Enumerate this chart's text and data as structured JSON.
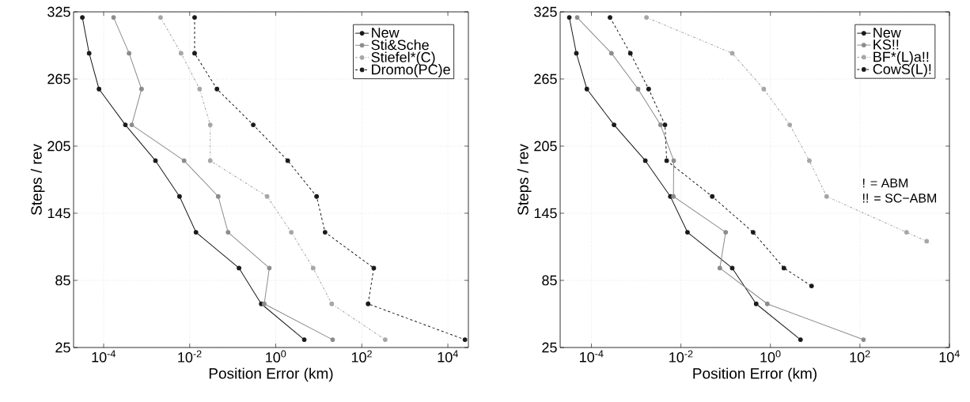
{
  "chart_data": [
    {
      "type": "line",
      "xlabel": "Position Error  (km)",
      "ylabel": "Steps / rev",
      "log": "x",
      "grid": true,
      "legend": "top right",
      "marker": "circle",
      "xlim": [
        2e-05,
        30000.0
      ],
      "ylim": [
        25,
        325
      ],
      "yticks": [
        25,
        85,
        145,
        205,
        265,
        325
      ],
      "xticks": [
        {
          "value": 0.0001,
          "label": "10$^{-4}$"
        },
        {
          "value": 0.01,
          "label": "10$^{-2}$"
        },
        {
          "value": 1,
          "label": "10$^{0}$"
        },
        {
          "value": 100,
          "label": "10$^{2}$"
        },
        {
          "value": 10000,
          "label": "10$^{4}$"
        }
      ],
      "series": [
        {
          "name": "New",
          "color": "#1a1a1a",
          "line_style": "solid",
          "x": [
            3.2e-05,
            4.6e-05,
            7.8e-05,
            0.00032,
            0.0016,
            0.0058,
            0.014,
            0.14,
            0.46,
            4.6
          ],
          "values": [
            320,
            288,
            256,
            224,
            192,
            160,
            128,
            96,
            64,
            32
          ]
        },
        {
          "name": "Sti&Sche",
          "color": "#8c8c8c",
          "line_style": "solid",
          "x": [
            0.00017,
            0.00039,
            0.00076,
            0.00045,
            0.0074,
            0.046,
            0.078,
            0.71,
            0.54,
            21
          ],
          "values": [
            320,
            288,
            256,
            224,
            192,
            160,
            128,
            96,
            64,
            32
          ]
        },
        {
          "name": "Stiefel*(C)",
          "color": "#a6a6a6",
          "line_style": "dashdot",
          "x": [
            0.0021,
            0.0063,
            0.017,
            0.03,
            0.03,
            0.63,
            2.3,
            7.4,
            20,
            350
          ],
          "values": [
            320,
            288,
            256,
            224,
            192,
            160,
            128,
            96,
            64,
            32
          ]
        },
        {
          "name": "Dromo(PC)e",
          "color": "#1a1a1a",
          "line_style": "dashed",
          "x": [
            0.013,
            0.013,
            0.043,
            0.3,
            1.9,
            8.9,
            14,
            190,
            140,
            25000
          ],
          "values": [
            320,
            288,
            256,
            224,
            192,
            160,
            128,
            96,
            64,
            32
          ]
        }
      ]
    },
    {
      "type": "line",
      "xlabel": "Position Error  (km)",
      "ylabel": "Steps / rev",
      "log": "x",
      "grid": true,
      "legend": "top right",
      "marker": "circle",
      "xlim": [
        2e-05,
        10000
      ],
      "ylim": [
        25,
        325
      ],
      "yticks": [
        25,
        85,
        145,
        205,
        265,
        325
      ],
      "xticks": [
        {
          "value": 0.0001,
          "label": "10$^{-4}$"
        },
        {
          "value": 0.01,
          "label": "10$^{-2}$"
        },
        {
          "value": 1,
          "label": "10$^{0}$"
        },
        {
          "value": 100,
          "label": "10$^{2}$"
        },
        {
          "value": 10000,
          "label": "10$^{4}$"
        }
      ],
      "annotations": [
        "! = ABM",
        "!! = SC−ABM"
      ],
      "series": [
        {
          "name": "New",
          "color": "#1a1a1a",
          "line_style": "solid",
          "x": [
            3.2e-05,
            4.6e-05,
            7.9e-05,
            0.00032,
            0.0016,
            0.0058,
            0.014,
            0.14,
            0.48,
            4.7
          ],
          "values": [
            320,
            288,
            256,
            224,
            192,
            160,
            128,
            96,
            64,
            32
          ]
        },
        {
          "name": "KS!!",
          "color": "#8c8c8c",
          "line_style": "solid",
          "x": [
            4.8e-05,
            0.00028,
            0.0011,
            0.0035,
            0.0069,
            0.0068,
            0.1,
            0.074,
            0.85,
            120
          ],
          "values": [
            320,
            288,
            256,
            224,
            192,
            160,
            128,
            96,
            64,
            32
          ]
        },
        {
          "name": "BF*(L)a!!",
          "color": "#a6a6a6",
          "line_style": "dashdot",
          "x": [
            0.0017,
            0.14,
            0.71,
            2.7,
            7.4,
            18,
            1100,
            3100
          ],
          "values": [
            320,
            288,
            256,
            224,
            192,
            160,
            128,
            120
          ]
        },
        {
          "name": "CowS(L)!",
          "color": "#1a1a1a",
          "line_style": "dashed",
          "x": [
            0.00026,
            0.00074,
            0.0019,
            0.0044,
            0.0048,
            0.05,
            0.41,
            2.0,
            8.3
          ],
          "values": [
            320,
            288,
            256,
            224,
            192,
            160,
            128,
            96,
            80
          ]
        }
      ]
    }
  ]
}
